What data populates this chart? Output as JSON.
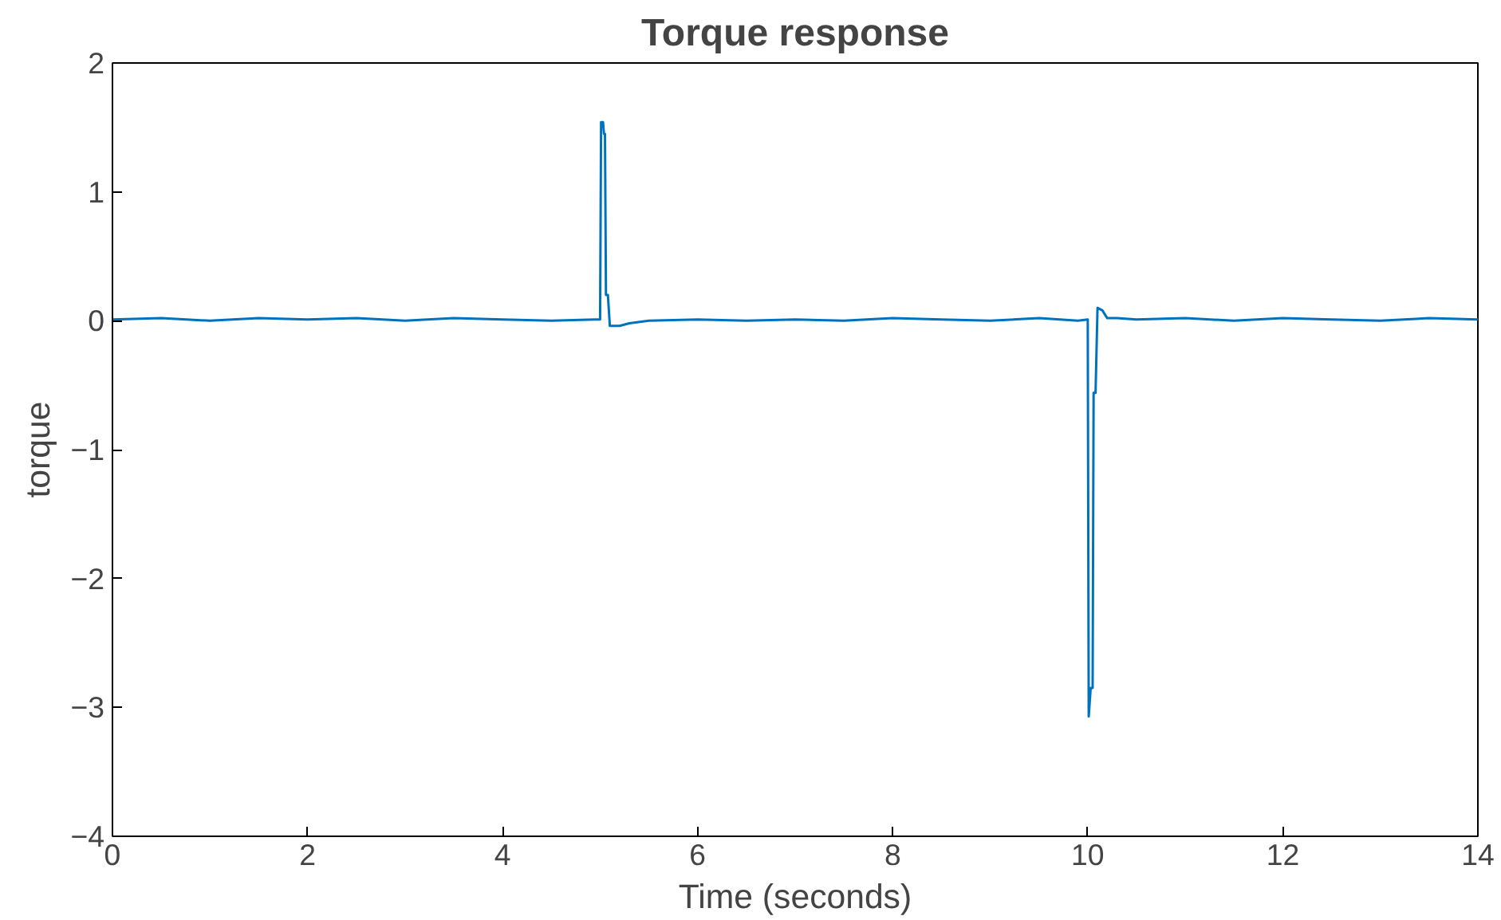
{
  "chart_data": {
    "type": "line",
    "title": "Torque response",
    "xlabel": "Time (seconds)",
    "ylabel": "torque",
    "x": [
      0,
      0.5,
      1,
      1.5,
      2,
      2.5,
      3,
      3.5,
      4,
      4.5,
      4.95,
      5.0,
      5.01,
      5.03,
      5.04,
      5.05,
      5.06,
      5.08,
      5.1,
      5.12,
      5.2,
      5.3,
      5.5,
      6,
      6.5,
      7,
      7.5,
      8,
      8.5,
      9,
      9.5,
      9.9,
      10.0,
      10.01,
      10.03,
      10.05,
      10.06,
      10.08,
      10.1,
      10.15,
      10.2,
      10.3,
      10.5,
      11,
      11.5,
      12,
      12.5,
      13,
      13.5,
      14
    ],
    "values": [
      0.01,
      0.02,
      0.0,
      0.02,
      0.01,
      0.02,
      0.0,
      0.02,
      0.01,
      0.0,
      0.01,
      0.01,
      1.54,
      1.54,
      1.45,
      1.45,
      0.2,
      0.2,
      -0.04,
      -0.04,
      -0.04,
      -0.02,
      0.0,
      0.01,
      0.0,
      0.01,
      0.0,
      0.02,
      0.01,
      0.0,
      0.02,
      0.0,
      0.01,
      -3.07,
      -2.85,
      -2.85,
      -0.56,
      -0.56,
      0.1,
      0.08,
      0.02,
      0.02,
      0.01,
      0.02,
      0.0,
      0.02,
      0.01,
      0.0,
      0.02,
      0.01
    ],
    "color": "#0072bd",
    "xlim": [
      0,
      14
    ],
    "ylim": [
      -4,
      2
    ],
    "xticks": [
      0,
      2,
      4,
      6,
      8,
      10,
      12,
      14
    ],
    "yticks": [
      -4,
      -3,
      -2,
      -1,
      0,
      1,
      2
    ],
    "grid": false
  }
}
